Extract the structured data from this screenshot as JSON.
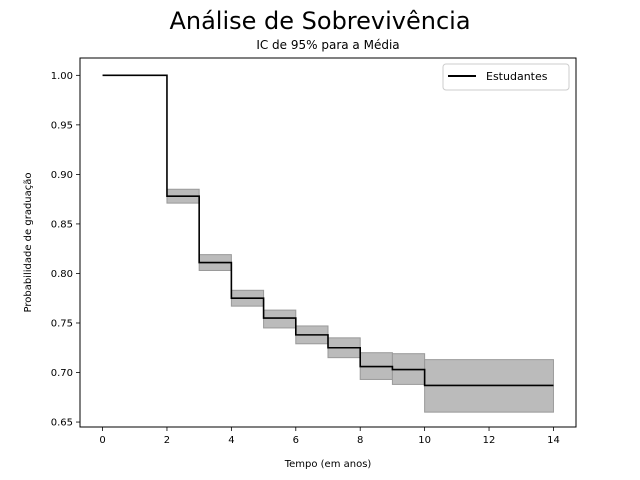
{
  "chart_data": {
    "type": "line",
    "title": "Análise de Sobrevivência",
    "subtitle": "IC de 95% para a Média",
    "xlabel": "Tempo (em anos)",
    "ylabel": "Probabilidade de graduação",
    "xlim": [
      -0.7,
      14.7
    ],
    "ylim": [
      0.645,
      1.0175
    ],
    "x_ticks": [
      0,
      2,
      4,
      6,
      8,
      10,
      12,
      14
    ],
    "y_ticks": [
      0.65,
      0.7,
      0.75,
      0.8,
      0.85,
      0.9,
      0.95,
      1.0
    ],
    "grid": false,
    "legend_position": "top-right",
    "series": [
      {
        "name": "Estudantes",
        "color": "#000000",
        "step": "post",
        "x": [
          0,
          2,
          3,
          4,
          5,
          6,
          7,
          8,
          9,
          10,
          14
        ],
        "y": [
          1.0,
          0.878,
          0.811,
          0.775,
          0.755,
          0.738,
          0.725,
          0.706,
          0.703,
          0.687,
          0.687
        ],
        "ci_color": "#bbbbbb",
        "ci_lower": [
          1.0,
          0.871,
          0.803,
          0.767,
          0.745,
          0.729,
          0.715,
          0.693,
          0.688,
          0.66,
          0.66
        ],
        "ci_upper": [
          1.0,
          0.885,
          0.819,
          0.783,
          0.763,
          0.747,
          0.735,
          0.72,
          0.719,
          0.713,
          0.713
        ]
      }
    ]
  }
}
